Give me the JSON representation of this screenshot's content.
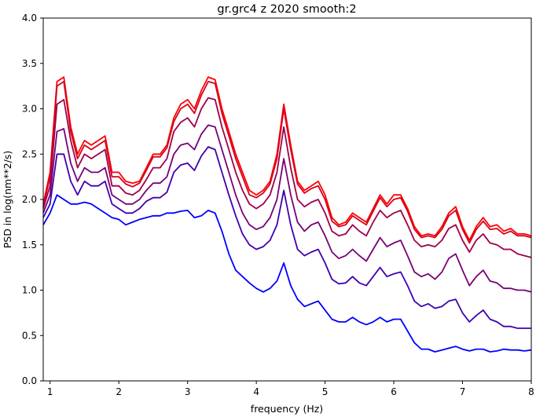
{
  "chart_data": {
    "type": "line",
    "title": "gr.grc4 z 2020 smooth:2",
    "xlabel": "frequency (Hz)",
    "ylabel": "PSD in log(nm**2/s)",
    "xlim": [
      0.9,
      8.0
    ],
    "ylim": [
      0.0,
      4.0
    ],
    "x_ticks": [
      1,
      2,
      3,
      4,
      5,
      6,
      7,
      8
    ],
    "y_ticks": [
      0.0,
      0.5,
      1.0,
      1.5,
      2.0,
      2.5,
      3.0,
      3.5,
      4.0
    ],
    "grid": false,
    "x": [
      0.9,
      1.0,
      1.1,
      1.2,
      1.3,
      1.4,
      1.5,
      1.6,
      1.7,
      1.8,
      1.9,
      2.0,
      2.1,
      2.2,
      2.3,
      2.4,
      2.5,
      2.6,
      2.7,
      2.8,
      2.9,
      3.0,
      3.1,
      3.2,
      3.3,
      3.4,
      3.5,
      3.6,
      3.7,
      3.8,
      3.9,
      4.0,
      4.1,
      4.2,
      4.3,
      4.4,
      4.5,
      4.6,
      4.7,
      4.8,
      4.9,
      5.0,
      5.1,
      5.2,
      5.3,
      5.4,
      5.5,
      5.6,
      5.7,
      5.8,
      5.9,
      6.0,
      6.1,
      6.2,
      6.3,
      6.4,
      6.5,
      6.6,
      6.7,
      6.8,
      6.9,
      7.0,
      7.1,
      7.2,
      7.3,
      7.4,
      7.5,
      7.6,
      7.7,
      7.8,
      7.9,
      8.0
    ],
    "series": [
      {
        "color": "#ff0000",
        "values": [
          1.95,
          2.3,
          3.3,
          3.35,
          2.8,
          2.5,
          2.65,
          2.6,
          2.65,
          2.7,
          2.3,
          2.3,
          2.2,
          2.18,
          2.2,
          2.35,
          2.5,
          2.5,
          2.6,
          2.9,
          3.05,
          3.1,
          3.0,
          3.2,
          3.35,
          3.32,
          3.0,
          2.75,
          2.5,
          2.3,
          2.1,
          2.05,
          2.1,
          2.2,
          2.5,
          3.05,
          2.6,
          2.2,
          2.1,
          2.15,
          2.2,
          2.05,
          1.8,
          1.72,
          1.75,
          1.85,
          1.8,
          1.75,
          1.9,
          2.05,
          1.95,
          2.05,
          2.05,
          1.9,
          1.7,
          1.6,
          1.62,
          1.6,
          1.7,
          1.85,
          1.92,
          1.7,
          1.55,
          1.7,
          1.8,
          1.7,
          1.72,
          1.65,
          1.68,
          1.62,
          1.62,
          1.6
        ]
      },
      {
        "color": "#d8001c",
        "values": [
          1.92,
          2.25,
          3.25,
          3.3,
          2.75,
          2.45,
          2.6,
          2.55,
          2.6,
          2.65,
          2.25,
          2.25,
          2.17,
          2.14,
          2.18,
          2.32,
          2.47,
          2.47,
          2.57,
          2.86,
          3.0,
          3.05,
          2.95,
          3.15,
          3.3,
          3.28,
          2.95,
          2.7,
          2.45,
          2.25,
          2.05,
          2.02,
          2.07,
          2.17,
          2.45,
          3.0,
          2.55,
          2.17,
          2.07,
          2.12,
          2.15,
          2.0,
          1.76,
          1.7,
          1.72,
          1.82,
          1.77,
          1.72,
          1.87,
          2.02,
          1.92,
          2.0,
          2.02,
          1.87,
          1.67,
          1.58,
          1.6,
          1.58,
          1.67,
          1.82,
          1.88,
          1.67,
          1.52,
          1.67,
          1.76,
          1.67,
          1.68,
          1.62,
          1.65,
          1.6,
          1.6,
          1.58
        ]
      },
      {
        "color": "#a00048",
        "values": [
          1.9,
          2.15,
          3.05,
          3.1,
          2.65,
          2.35,
          2.5,
          2.45,
          2.5,
          2.55,
          2.15,
          2.15,
          2.07,
          2.05,
          2.1,
          2.22,
          2.35,
          2.35,
          2.45,
          2.75,
          2.85,
          2.9,
          2.8,
          3.0,
          3.12,
          3.1,
          2.8,
          2.55,
          2.3,
          2.1,
          1.95,
          1.9,
          1.95,
          2.05,
          2.3,
          2.8,
          2.35,
          2.0,
          1.92,
          1.97,
          2.0,
          1.85,
          1.65,
          1.6,
          1.62,
          1.72,
          1.65,
          1.6,
          1.75,
          1.88,
          1.8,
          1.85,
          1.88,
          1.72,
          1.55,
          1.48,
          1.5,
          1.48,
          1.55,
          1.68,
          1.72,
          1.55,
          1.42,
          1.55,
          1.62,
          1.52,
          1.5,
          1.45,
          1.45,
          1.4,
          1.38,
          1.36
        ]
      },
      {
        "color": "#780078",
        "values": [
          1.85,
          2.05,
          2.75,
          2.78,
          2.4,
          2.2,
          2.35,
          2.3,
          2.3,
          2.35,
          2.05,
          2.0,
          1.95,
          1.95,
          2.0,
          2.1,
          2.18,
          2.18,
          2.25,
          2.5,
          2.6,
          2.62,
          2.55,
          2.72,
          2.82,
          2.8,
          2.55,
          2.3,
          2.05,
          1.85,
          1.72,
          1.67,
          1.7,
          1.8,
          2.0,
          2.45,
          2.05,
          1.75,
          1.65,
          1.72,
          1.75,
          1.6,
          1.42,
          1.35,
          1.38,
          1.45,
          1.38,
          1.32,
          1.45,
          1.58,
          1.48,
          1.52,
          1.55,
          1.38,
          1.2,
          1.15,
          1.18,
          1.12,
          1.2,
          1.35,
          1.4,
          1.22,
          1.05,
          1.15,
          1.22,
          1.1,
          1.08,
          1.02,
          1.02,
          1.0,
          1.0,
          0.98
        ]
      },
      {
        "color": "#4000b0",
        "values": [
          1.8,
          1.95,
          2.5,
          2.5,
          2.2,
          2.05,
          2.2,
          2.15,
          2.15,
          2.2,
          1.95,
          1.9,
          1.85,
          1.85,
          1.9,
          1.98,
          2.02,
          2.02,
          2.08,
          2.3,
          2.38,
          2.4,
          2.32,
          2.48,
          2.58,
          2.55,
          2.3,
          2.05,
          1.82,
          1.62,
          1.5,
          1.45,
          1.48,
          1.55,
          1.72,
          2.1,
          1.72,
          1.45,
          1.38,
          1.42,
          1.45,
          1.3,
          1.12,
          1.07,
          1.08,
          1.15,
          1.08,
          1.05,
          1.15,
          1.25,
          1.15,
          1.18,
          1.2,
          1.05,
          0.88,
          0.82,
          0.85,
          0.8,
          0.82,
          0.88,
          0.9,
          0.75,
          0.65,
          0.72,
          0.78,
          0.68,
          0.65,
          0.6,
          0.6,
          0.58,
          0.58,
          0.58
        ]
      },
      {
        "color": "#0000ff",
        "values": [
          1.72,
          1.85,
          2.05,
          2.0,
          1.95,
          1.95,
          1.97,
          1.95,
          1.9,
          1.85,
          1.8,
          1.78,
          1.72,
          1.75,
          1.78,
          1.8,
          1.82,
          1.82,
          1.85,
          1.85,
          1.87,
          1.88,
          1.8,
          1.82,
          1.88,
          1.85,
          1.65,
          1.4,
          1.22,
          1.15,
          1.08,
          1.02,
          0.98,
          1.02,
          1.1,
          1.3,
          1.05,
          0.9,
          0.82,
          0.85,
          0.88,
          0.78,
          0.68,
          0.65,
          0.65,
          0.7,
          0.65,
          0.62,
          0.65,
          0.7,
          0.65,
          0.68,
          0.68,
          0.55,
          0.42,
          0.35,
          0.35,
          0.32,
          0.34,
          0.36,
          0.38,
          0.35,
          0.33,
          0.35,
          0.35,
          0.32,
          0.33,
          0.35,
          0.34,
          0.34,
          0.33,
          0.34
        ]
      }
    ]
  }
}
